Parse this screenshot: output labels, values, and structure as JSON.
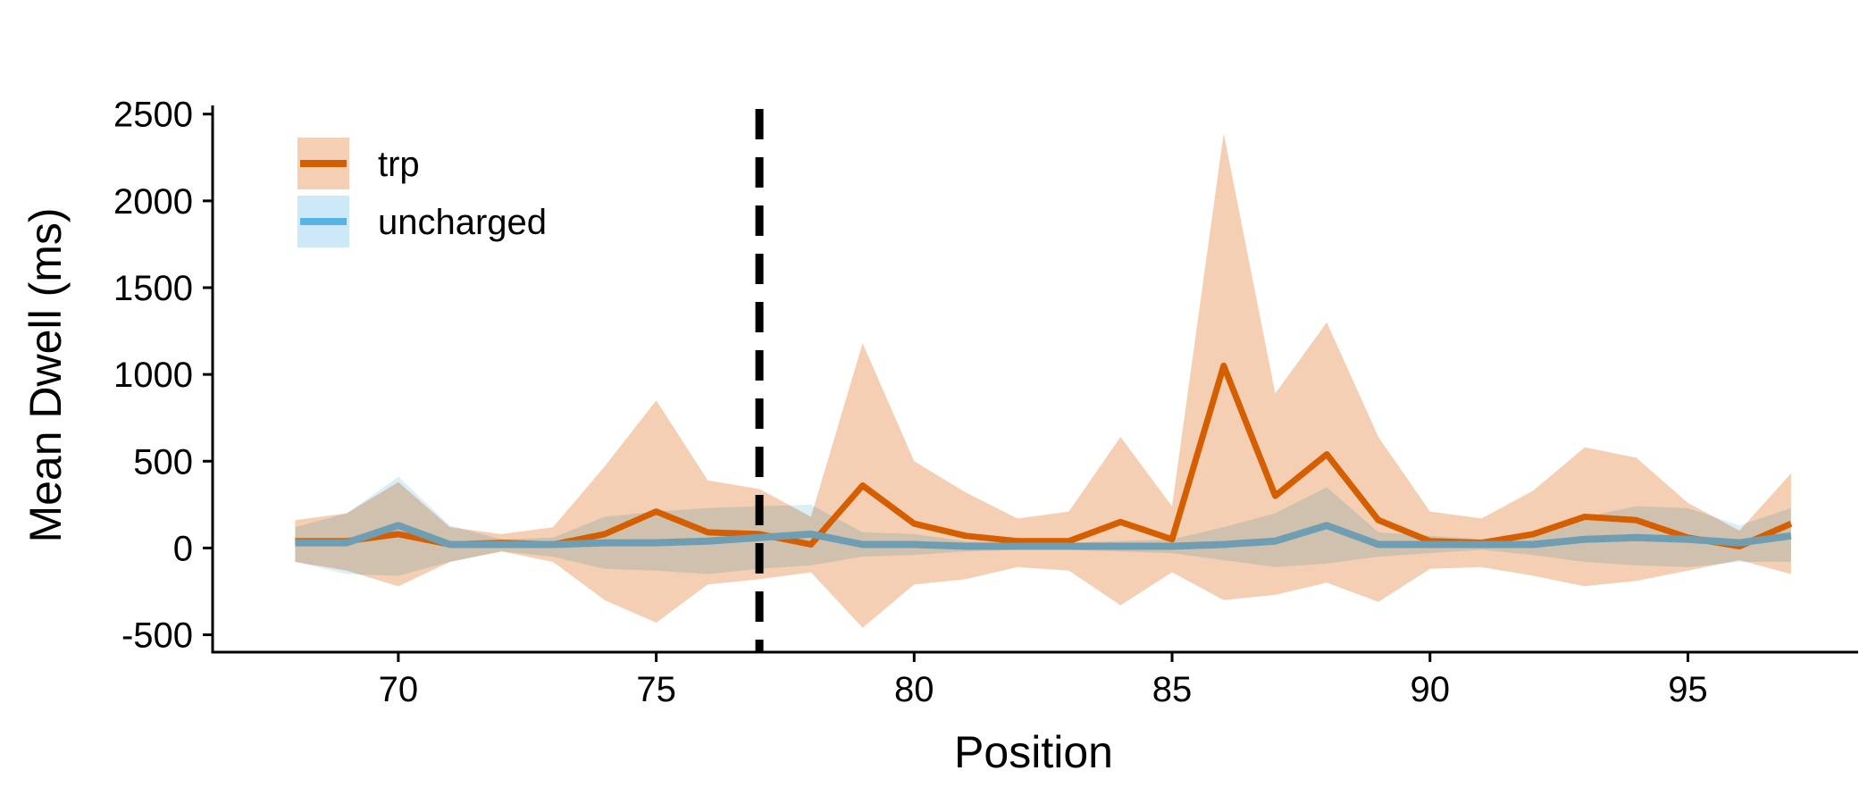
{
  "chart_data": {
    "type": "line",
    "xlabel": "Position",
    "ylabel": "Mean Dwell (ms)",
    "xlim": [
      66.4,
      98.3
    ],
    "ylim": [
      -600,
      2550
    ],
    "xticks": [
      70,
      75,
      80,
      85,
      90,
      95
    ],
    "yticks": [
      -500,
      0,
      500,
      1000,
      1500,
      2000,
      2500
    ],
    "ytick_labels": [
      "-500",
      "0",
      "500",
      "1000",
      "1500",
      "2000",
      "2500"
    ],
    "grid": false,
    "legend": "top-left",
    "vline": {
      "x": 77,
      "style": "dashed",
      "color": "#000000"
    },
    "x": [
      68,
      69,
      70,
      71,
      72,
      73,
      74,
      75,
      76,
      77,
      78,
      79,
      80,
      81,
      82,
      83,
      84,
      85,
      86,
      87,
      88,
      89,
      90,
      91,
      92,
      93,
      94,
      95,
      96,
      97
    ],
    "series": [
      {
        "name": "trp",
        "color": "#D55E00",
        "band_color": "#F4CFB3",
        "values": [
          40,
          40,
          80,
          20,
          30,
          20,
          80,
          210,
          90,
          80,
          20,
          360,
          140,
          70,
          40,
          40,
          150,
          50,
          1050,
          300,
          540,
          160,
          40,
          30,
          80,
          180,
          160,
          60,
          10,
          140
        ],
        "upper": [
          160,
          200,
          380,
          120,
          80,
          120,
          470,
          850,
          390,
          340,
          180,
          1180,
          500,
          320,
          170,
          210,
          640,
          240,
          2390,
          890,
          1300,
          640,
          210,
          170,
          330,
          580,
          520,
          260,
          100,
          430
        ],
        "lower": [
          -80,
          -130,
          -220,
          -80,
          -20,
          -80,
          -300,
          -430,
          -210,
          -180,
          -140,
          -460,
          -210,
          -180,
          -110,
          -130,
          -330,
          -140,
          -300,
          -270,
          -200,
          -310,
          -120,
          -110,
          -160,
          -220,
          -190,
          -130,
          -70,
          -150
        ]
      },
      {
        "name": "uncharged",
        "color": "#56B4E9",
        "line_color": "#6F9EB3",
        "band_color": "#CDE8F6",
        "values": [
          30,
          30,
          130,
          20,
          20,
          20,
          30,
          30,
          40,
          60,
          80,
          20,
          20,
          10,
          10,
          10,
          10,
          10,
          20,
          40,
          130,
          20,
          20,
          20,
          20,
          50,
          60,
          50,
          30,
          70
        ],
        "upper": [
          120,
          200,
          410,
          130,
          50,
          60,
          180,
          210,
          230,
          240,
          250,
          90,
          80,
          40,
          30,
          30,
          40,
          50,
          120,
          200,
          350,
          90,
          70,
          50,
          90,
          180,
          240,
          230,
          130,
          230
        ],
        "lower": [
          -80,
          -150,
          -160,
          -80,
          -20,
          -50,
          -120,
          -130,
          -150,
          -120,
          -100,
          -50,
          -40,
          -20,
          -10,
          -10,
          -20,
          -30,
          -70,
          -110,
          -90,
          -50,
          -30,
          -10,
          -40,
          -80,
          -100,
          -110,
          -80,
          -80
        ]
      }
    ]
  }
}
